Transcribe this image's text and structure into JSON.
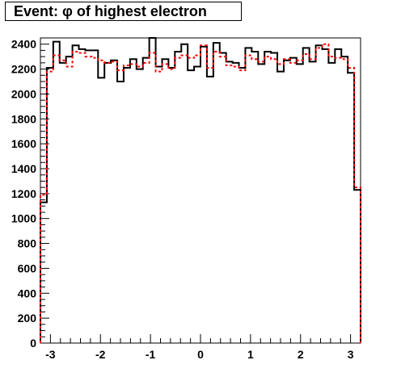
{
  "chart_data": {
    "type": "line",
    "title": "Event: φ of highest electron",
    "xlabel": "",
    "ylabel": "",
    "xlim": [
      -3.2,
      3.2
    ],
    "ylim": [
      0,
      2450
    ],
    "x_ticks": [
      -3,
      -2,
      -1,
      0,
      1,
      2,
      3
    ],
    "x_tick_labels": [
      "-3",
      "-2",
      "-1",
      "0",
      "1",
      "2",
      "3"
    ],
    "y_ticks": [
      0,
      200,
      400,
      600,
      800,
      1000,
      1200,
      1400,
      1600,
      1800,
      2000,
      2200,
      2400
    ],
    "y_tick_labels": [
      "0",
      "200",
      "400",
      "600",
      "800",
      "1000",
      "1200",
      "1400",
      "1600",
      "1800",
      "2000",
      "2200",
      "2400"
    ],
    "grid": false,
    "bin_edges": [
      -3.2,
      -3.072,
      -2.944,
      -2.816,
      -2.688,
      -2.56,
      -2.432,
      -2.304,
      -2.176,
      -2.048,
      -1.92,
      -1.792,
      -1.664,
      -1.536,
      -1.408,
      -1.28,
      -1.152,
      -1.024,
      -0.896,
      -0.768,
      -0.64,
      -0.512,
      -0.384,
      -0.256,
      -0.128,
      0.0,
      0.128,
      0.256,
      0.384,
      0.512,
      0.64,
      0.768,
      0.896,
      1.024,
      1.152,
      1.28,
      1.408,
      1.536,
      1.664,
      1.792,
      1.92,
      2.048,
      2.176,
      2.304,
      2.432,
      2.56,
      2.688,
      2.816,
      2.944,
      3.072,
      3.2
    ],
    "series": [
      {
        "style": "solid",
        "color": "#000000",
        "values": [
          1130,
          2210,
          2420,
          2250,
          2300,
          2390,
          2360,
          2350,
          2350,
          2130,
          2250,
          2270,
          2100,
          2210,
          2280,
          2200,
          2290,
          2450,
          2220,
          2280,
          2210,
          2340,
          2400,
          2190,
          2220,
          2380,
          2140,
          2410,
          2330,
          2260,
          2250,
          2210,
          2370,
          2340,
          2240,
          2340,
          2330,
          2180,
          2270,
          2290,
          2240,
          2370,
          2260,
          2390,
          2360,
          2250,
          2360,
          2300,
          2170,
          1230
        ]
      },
      {
        "style": "dotted",
        "color": "#ff0000",
        "values": [
          1190,
          2180,
          2310,
          2270,
          2220,
          2340,
          2330,
          2300,
          2290,
          2270,
          2250,
          2260,
          2190,
          2230,
          2240,
          2220,
          2250,
          2330,
          2180,
          2240,
          2200,
          2290,
          2310,
          2290,
          2310,
          2390,
          2210,
          2340,
          2300,
          2230,
          2220,
          2190,
          2310,
          2280,
          2260,
          2300,
          2280,
          2240,
          2280,
          2250,
          2270,
          2320,
          2280,
          2370,
          2400,
          2300,
          2290,
          2280,
          2210,
          1250
        ]
      }
    ]
  }
}
